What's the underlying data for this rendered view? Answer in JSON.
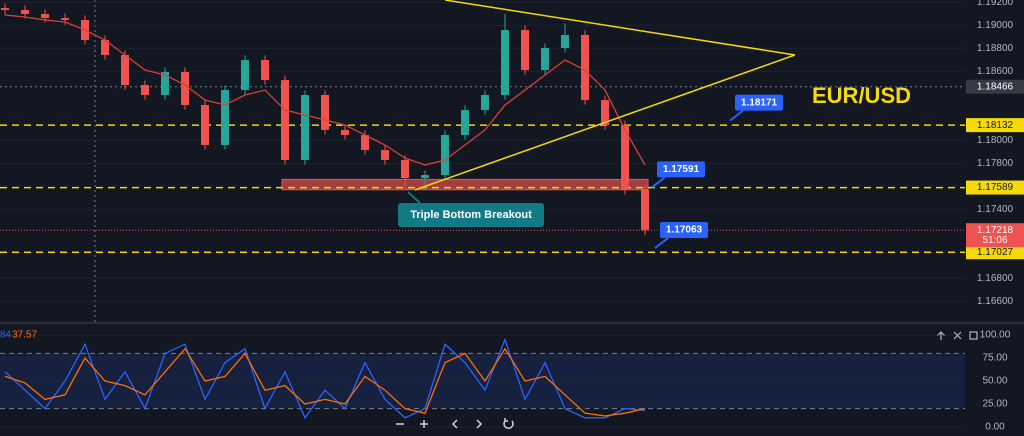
{
  "chart_data": [
    {
      "type": "candlestick",
      "title": "EUR/USD",
      "ylim": [
        1.1642,
        1.1922
      ],
      "yticks": [
        {
          "value": 1.192,
          "label": "1.19200"
        },
        {
          "value": 1.19,
          "label": "1.19000"
        },
        {
          "value": 1.188,
          "label": "1.18800"
        },
        {
          "value": 1.186,
          "label": "1.18600"
        },
        {
          "value": 1.18,
          "label": "1.18000"
        },
        {
          "value": 1.178,
          "label": "1.17800"
        },
        {
          "value": 1.174,
          "label": "1.17400"
        },
        {
          "value": 1.168,
          "label": "1.16800"
        },
        {
          "value": 1.166,
          "label": "1.16600"
        }
      ],
      "open": [
        1.1915,
        1.19133,
        1.19098,
        1.19063,
        1.19046,
        1.18872,
        1.18742,
        1.18481,
        1.18394,
        1.18594,
        1.18307,
        1.17959,
        1.18437,
        1.18698,
        1.18524,
        1.17829,
        1.18394,
        1.1809,
        1.18046,
        1.17916,
        1.17829,
        1.17672,
        1.17698,
        1.18046,
        1.18263,
        1.18394,
        1.18959,
        1.18611,
        1.18803,
        1.18916,
        1.1835,
        1.18133,
        1.17568
      ],
      "high": [
        1.1919,
        1.19173,
        1.19138,
        1.19103,
        1.19086,
        1.18912,
        1.18782,
        1.18521,
        1.18634,
        1.18634,
        1.18347,
        1.18477,
        1.18738,
        1.18738,
        1.18564,
        1.18434,
        1.18434,
        1.1813,
        1.18086,
        1.17956,
        1.17869,
        1.17738,
        1.18086,
        1.18303,
        1.18434,
        1.19099,
        1.18999,
        1.18843,
        1.19016,
        1.18956,
        1.1839,
        1.18173,
        1.17608
      ],
      "low": [
        1.19093,
        1.19058,
        1.19023,
        1.19006,
        1.18832,
        1.18702,
        1.18441,
        1.18354,
        1.18354,
        1.18267,
        1.17919,
        1.17919,
        1.18397,
        1.18484,
        1.17789,
        1.17789,
        1.1805,
        1.18006,
        1.17876,
        1.17789,
        1.17585,
        1.17582,
        1.17658,
        1.18006,
        1.18223,
        1.18354,
        1.18571,
        1.18571,
        1.18763,
        1.1831,
        1.18093,
        1.17528,
        1.17178
      ],
      "close": [
        1.19133,
        1.19098,
        1.19063,
        1.19046,
        1.18872,
        1.18742,
        1.18481,
        1.18394,
        1.18594,
        1.18307,
        1.17959,
        1.18437,
        1.18698,
        1.18524,
        1.17829,
        1.18394,
        1.1809,
        1.18046,
        1.17916,
        1.17829,
        1.17672,
        1.17698,
        1.18046,
        1.18263,
        1.18394,
        1.18959,
        1.18611,
        1.18803,
        1.18916,
        1.1835,
        1.18133,
        1.17568,
        1.17218
      ],
      "colors": {
        "up": "#26a69a",
        "down": "#ef5350"
      },
      "moving_average": {
        "color": "#d8403a",
        "values": [
          1.1909,
          1.19072,
          1.19046,
          1.19029,
          1.18959,
          1.18872,
          1.18742,
          1.18611,
          1.18568,
          1.18481,
          1.1835,
          1.18307,
          1.18394,
          1.18437,
          1.18263,
          1.1822,
          1.18177,
          1.18133,
          1.18046,
          1.17959,
          1.17846,
          1.17785,
          1.17829,
          1.17959,
          1.1809,
          1.18307,
          1.18437,
          1.18568,
          1.18698,
          1.18611,
          1.18437,
          1.1809,
          1.17785
        ]
      },
      "levels": [
        1.18132,
        1.17589,
        1.17027
      ],
      "level_color": "#f5d90a",
      "last_price": 1.17218,
      "countdown": "51:06",
      "crosshair_price": 1.18466,
      "callouts": [
        1.18171,
        1.17591,
        1.17063
      ],
      "support_zone": [
        1.1757,
        1.1766
      ],
      "support_label": "Triple Bottom Breakout",
      "trendlines": [
        [
          1.1922,
          1.18742
        ],
        [
          1.17568,
          1.18742
        ]
      ]
    },
    {
      "type": "line",
      "ylim": [
        -9.8,
        110.9
      ],
      "yticks": [
        {
          "value": 100,
          "label": "100.00"
        },
        {
          "value": 75,
          "label": "75.00"
        },
        {
          "value": 50,
          "label": "50.00"
        },
        {
          "value": 25,
          "label": "25.00"
        },
        {
          "value": 0,
          "label": "0.00"
        }
      ],
      "band": [
        20,
        80
      ],
      "legend": [
        "84",
        "37.57"
      ],
      "series": [
        {
          "color": "#2962ff",
          "values": [
            60,
            40,
            20,
            50,
            90,
            30,
            60,
            20,
            80,
            90,
            30,
            70,
            85,
            20,
            60,
            10,
            40,
            20,
            70,
            30,
            10,
            20,
            90,
            70,
            40,
            95,
            30,
            70,
            20,
            10,
            10,
            20,
            18
          ]
        },
        {
          "color": "#ff6d00",
          "values": [
            55,
            48,
            30,
            35,
            75,
            50,
            45,
            35,
            60,
            85,
            50,
            55,
            80,
            40,
            45,
            25,
            30,
            25,
            55,
            40,
            20,
            15,
            70,
            80,
            50,
            85,
            50,
            55,
            35,
            15,
            12,
            15,
            20
          ]
        }
      ]
    }
  ]
}
